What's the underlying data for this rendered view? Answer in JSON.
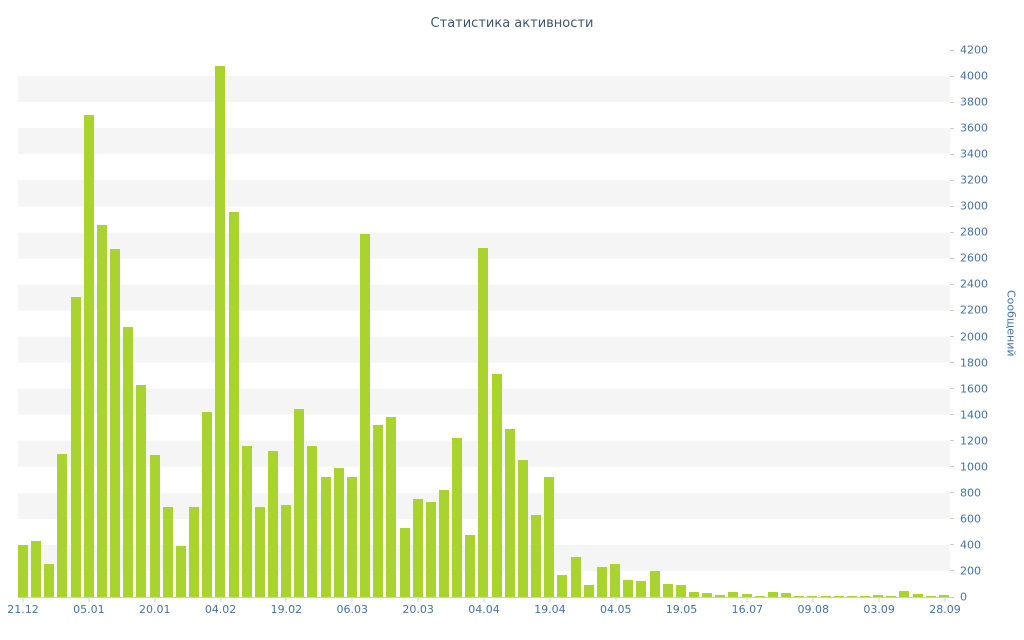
{
  "chart": {
    "title": "Статистика активности",
    "y_axis_title": "Сообщений"
  },
  "chart_data": {
    "type": "bar",
    "title": "Статистика активности",
    "xlabel": "",
    "ylabel": "Сообщений",
    "ylim": [
      0,
      4200
    ],
    "ytick_step": 200,
    "yticks": [
      0,
      200,
      400,
      600,
      800,
      1000,
      1200,
      1400,
      1600,
      1800,
      2000,
      2200,
      2400,
      2600,
      2800,
      3000,
      3200,
      3400,
      3600,
      3800,
      4000,
      4200
    ],
    "xticklabels": [
      "21.12",
      "05.01",
      "20.01",
      "04.02",
      "19.02",
      "06.03",
      "20.03",
      "04.04",
      "19.04",
      "04.05",
      "19.05",
      "16.07",
      "09.08",
      "03.09",
      "28.09"
    ],
    "xtick_every_n_bars": 5,
    "values": [
      400,
      430,
      250,
      1100,
      2300,
      3700,
      2860,
      2670,
      2070,
      1630,
      1090,
      690,
      390,
      690,
      1420,
      4080,
      2960,
      1160,
      690,
      1120,
      710,
      1440,
      1160,
      920,
      990,
      920,
      2790,
      1320,
      1380,
      530,
      750,
      730,
      820,
      1220,
      480,
      2680,
      1710,
      1290,
      1050,
      630,
      920,
      170,
      310,
      90,
      230,
      250,
      130,
      120,
      200,
      100,
      90,
      40,
      30,
      15,
      40,
      25,
      10,
      35,
      30,
      10,
      8,
      8,
      10,
      8,
      8,
      15,
      8,
      50,
      20,
      10,
      15
    ],
    "grid": "alternating-horizontal-bands",
    "legend": "none",
    "y_axis_position": "right",
    "colors": {
      "bar": "#a9d32e",
      "stripe": "#f5f5f5",
      "labels": "#4572a7",
      "title": "#3e576f",
      "axis_line": "#c0d0e0",
      "background": "#ffffff"
    }
  }
}
